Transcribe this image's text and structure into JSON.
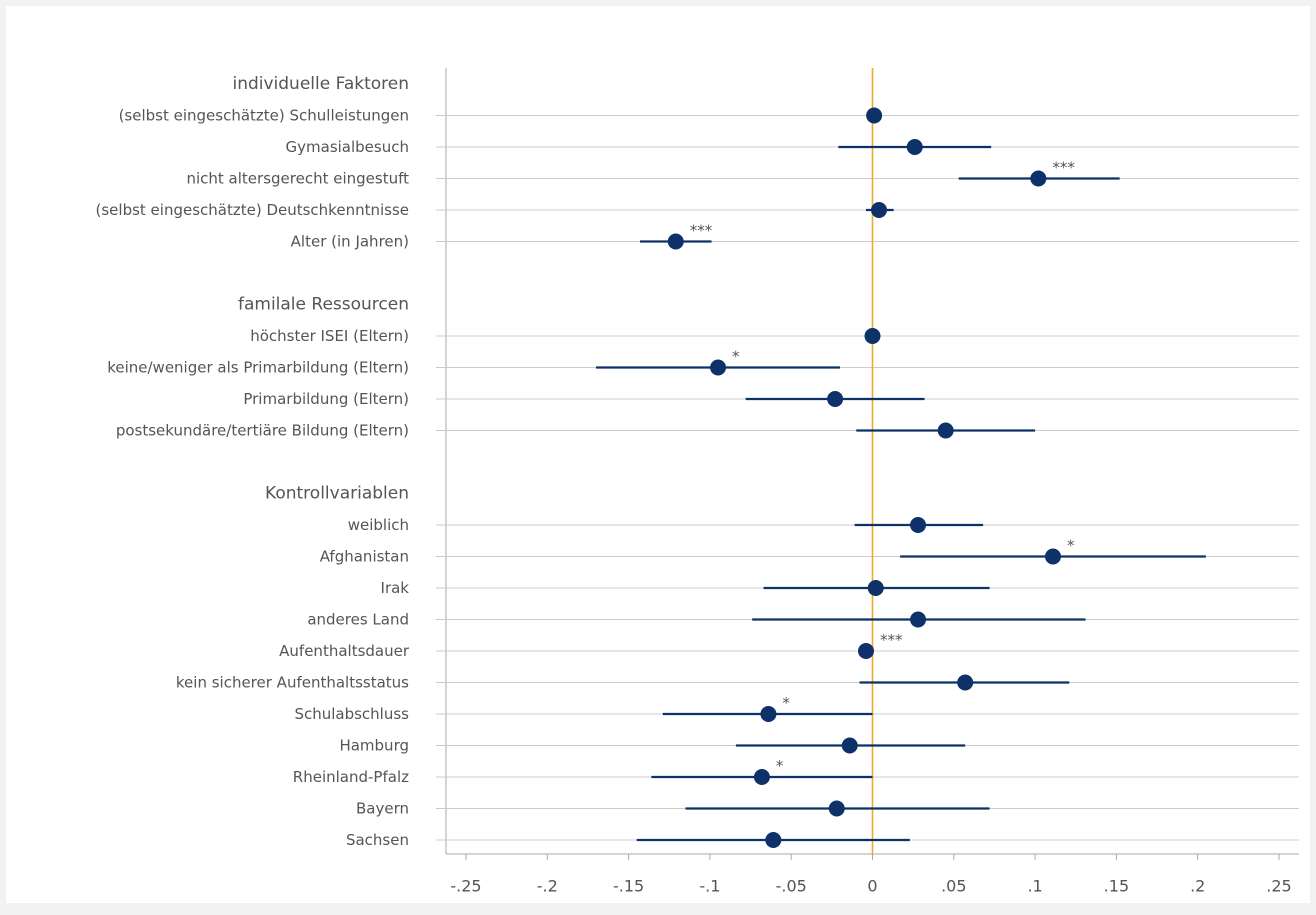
{
  "chart_data": {
    "type": "scatter",
    "subtype": "coefficient-plot",
    "title": "",
    "xlabel": "",
    "ylabel": "",
    "xlim": [
      -0.262,
      0.262
    ],
    "x_ticks": [
      -0.25,
      -0.2,
      -0.15,
      -0.1,
      -0.05,
      0,
      0.05,
      0.1,
      0.15,
      0.2,
      0.25
    ],
    "x_tick_labels": [
      "-.25",
      "-.2",
      "-.15",
      "-.1",
      "-.05",
      "0",
      ".05",
      ".1",
      ".15",
      ".2",
      ".25"
    ],
    "reference_line": 0,
    "grid": "horizontal",
    "colors": {
      "point": "#0d3168",
      "ci": "#0d3168",
      "reference": "#f0a830",
      "grid": "#cccccc",
      "axis": "#aaaaaa",
      "text": "#555555"
    },
    "rows": [
      {
        "kind": "group",
        "label": "individuelle Faktoren"
      },
      {
        "kind": "item",
        "label": "(selbst eingeschätzte) Schulleistungen",
        "estimate": 0.001,
        "ci_low": 0.0,
        "ci_high": 0.002,
        "sig": ""
      },
      {
        "kind": "item",
        "label": "Gymasialbesuch",
        "estimate": 0.026,
        "ci_low": -0.021,
        "ci_high": 0.073,
        "sig": ""
      },
      {
        "kind": "item",
        "label": "nicht altersgerecht eingestuft",
        "estimate": 0.102,
        "ci_low": 0.053,
        "ci_high": 0.152,
        "sig": "***"
      },
      {
        "kind": "item",
        "label": "(selbst eingeschätzte) Deutschkenntnisse",
        "estimate": 0.004,
        "ci_low": -0.004,
        "ci_high": 0.013,
        "sig": ""
      },
      {
        "kind": "item",
        "label": "Alter (in Jahren)",
        "estimate": -0.121,
        "ci_low": -0.143,
        "ci_high": -0.099,
        "sig": "***"
      },
      {
        "kind": "spacer"
      },
      {
        "kind": "group",
        "label": "familale Ressourcen"
      },
      {
        "kind": "item",
        "label": "höchster ISEI (Eltern)",
        "estimate": 0.0,
        "ci_low": -0.001,
        "ci_high": 0.001,
        "sig": ""
      },
      {
        "kind": "item",
        "label": "keine/weniger als Primarbildung (Eltern)",
        "estimate": -0.095,
        "ci_low": -0.17,
        "ci_high": -0.02,
        "sig": "*"
      },
      {
        "kind": "item",
        "label": "Primarbildung (Eltern)",
        "estimate": -0.023,
        "ci_low": -0.078,
        "ci_high": 0.032,
        "sig": ""
      },
      {
        "kind": "item",
        "label": "postsekundäre/tertiäre Bildung (Eltern)",
        "estimate": 0.045,
        "ci_low": -0.01,
        "ci_high": 0.1,
        "sig": ""
      },
      {
        "kind": "spacer"
      },
      {
        "kind": "group",
        "label": "Kontrollvariablen"
      },
      {
        "kind": "item",
        "label": "weiblich",
        "estimate": 0.028,
        "ci_low": -0.011,
        "ci_high": 0.068,
        "sig": ""
      },
      {
        "kind": "item",
        "label": "Afghanistan",
        "estimate": 0.111,
        "ci_low": 0.017,
        "ci_high": 0.205,
        "sig": "*"
      },
      {
        "kind": "item",
        "label": "Irak",
        "estimate": 0.002,
        "ci_low": -0.067,
        "ci_high": 0.072,
        "sig": ""
      },
      {
        "kind": "item",
        "label": "anderes Land",
        "estimate": 0.028,
        "ci_low": -0.074,
        "ci_high": 0.131,
        "sig": ""
      },
      {
        "kind": "item",
        "label": "Aufenthaltsdauer",
        "estimate": -0.004,
        "ci_low": -0.006,
        "ci_high": -0.002,
        "sig": "***"
      },
      {
        "kind": "item",
        "label": "kein sicherer Aufenthaltsstatus",
        "estimate": 0.057,
        "ci_low": -0.008,
        "ci_high": 0.121,
        "sig": ""
      },
      {
        "kind": "item",
        "label": "Schulabschluss",
        "estimate": -0.064,
        "ci_low": -0.129,
        "ci_high": 0.0,
        "sig": "*"
      },
      {
        "kind": "item",
        "label": "Hamburg",
        "estimate": -0.014,
        "ci_low": -0.084,
        "ci_high": 0.057,
        "sig": ""
      },
      {
        "kind": "item",
        "label": "Rheinland-Pfalz",
        "estimate": -0.068,
        "ci_low": -0.136,
        "ci_high": 0.0,
        "sig": "*"
      },
      {
        "kind": "item",
        "label": "Bayern",
        "estimate": -0.022,
        "ci_low": -0.115,
        "ci_high": 0.072,
        "sig": ""
      },
      {
        "kind": "item",
        "label": "Sachsen",
        "estimate": -0.061,
        "ci_low": -0.145,
        "ci_high": 0.023,
        "sig": ""
      }
    ]
  }
}
